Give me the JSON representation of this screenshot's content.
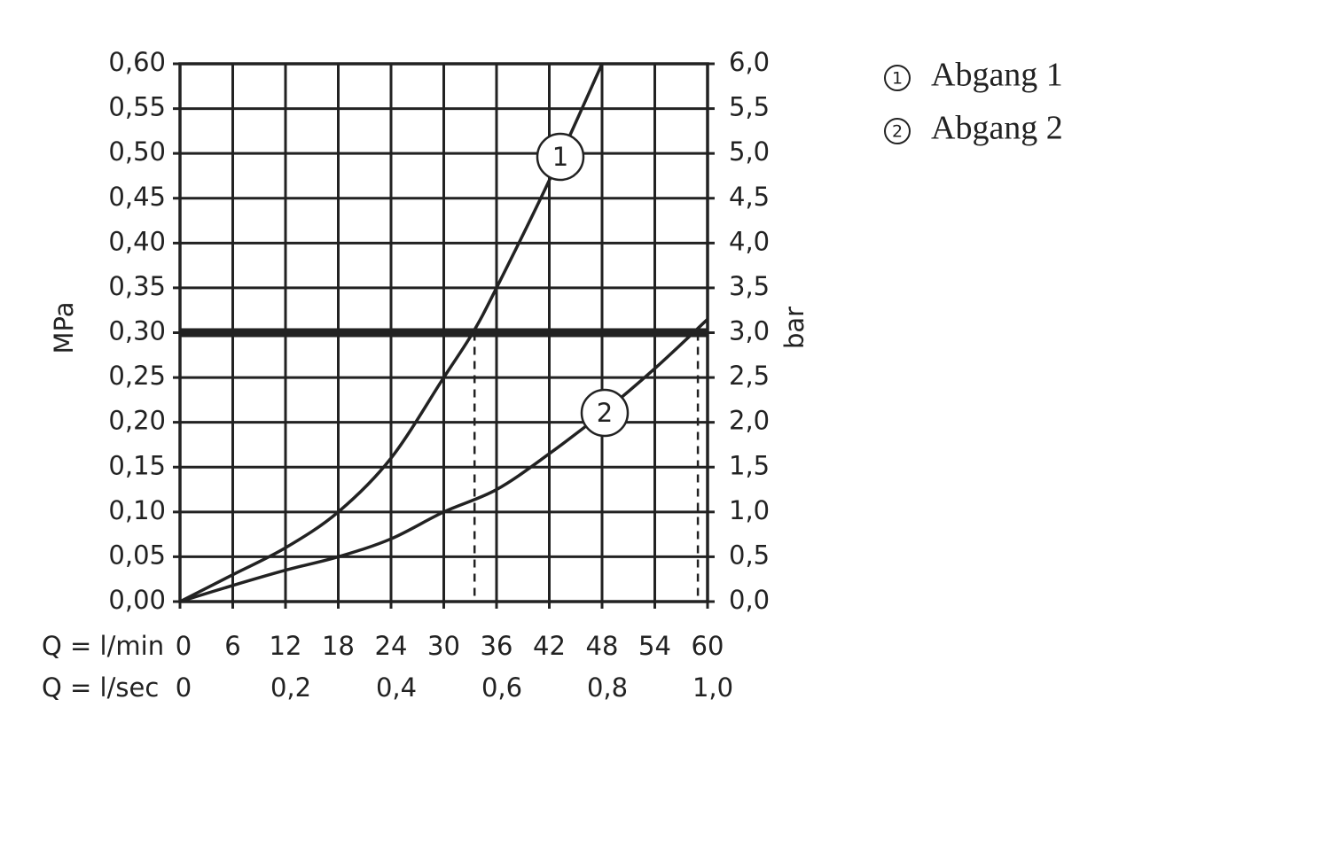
{
  "chart_data": {
    "type": "line",
    "xlabel": "Q = l/min",
    "x2label": "Q = l/sec",
    "ylabel": "MPa",
    "y2label": "bar",
    "xlim": [
      0,
      60
    ],
    "xticks": [
      0,
      6,
      12,
      18,
      24,
      30,
      36,
      42,
      48,
      54,
      60
    ],
    "x2lim": [
      0,
      1
    ],
    "x2ticks": [
      0,
      {
        "value": 0.2,
        "label": "0,2"
      },
      {
        "value": 0.4,
        "label": "0,4"
      },
      {
        "value": 0.6,
        "label": "0,6"
      },
      {
        "value": 0.8,
        "label": "0,8"
      },
      {
        "value": 1.0,
        "label": "1,0"
      }
    ],
    "ylim": [
      0,
      0.6
    ],
    "yticks": [
      {
        "value": 0,
        "label": "0,00"
      },
      {
        "value": 0.05,
        "label": "0,05"
      },
      {
        "value": 0.1,
        "label": "0,10"
      },
      {
        "value": 0.15,
        "label": "0,15"
      },
      {
        "value": 0.2,
        "label": "0,20"
      },
      {
        "value": 0.25,
        "label": "0,25"
      },
      {
        "value": 0.3,
        "label": "0,30"
      },
      {
        "value": 0.35,
        "label": "0,35"
      },
      {
        "value": 0.4,
        "label": "0,40"
      },
      {
        "value": 0.45,
        "label": "0,45"
      },
      {
        "value": 0.5,
        "label": "0,50"
      },
      {
        "value": 0.55,
        "label": "0,55"
      },
      {
        "value": 0.6,
        "label": "0,60"
      }
    ],
    "y2lim": [
      0,
      6
    ],
    "y2ticks": [
      {
        "value": 0,
        "label": "0,0"
      },
      {
        "value": 0.5,
        "label": "0,5"
      },
      {
        "value": 1,
        "label": "1,0"
      },
      {
        "value": 1.5,
        "label": "1,5"
      },
      {
        "value": 2,
        "label": "2,0"
      },
      {
        "value": 2.5,
        "label": "2,5"
      },
      {
        "value": 3,
        "label": "3,0"
      },
      {
        "value": 3.5,
        "label": "3,5"
      },
      {
        "value": 4,
        "label": "4,0"
      },
      {
        "value": 4.5,
        "label": "4,5"
      },
      {
        "value": 5,
        "label": "5,0"
      },
      {
        "value": 5.5,
        "label": "5,5"
      },
      {
        "value": 6,
        "label": "6,0"
      }
    ],
    "grid": true,
    "reference_y": 0.3,
    "drop_lines_x": [
      33.5,
      58.9
    ],
    "series": [
      {
        "name": "Abgang 1",
        "label": "1",
        "color": "#222222",
        "x": [
          0,
          6,
          12,
          18,
          24,
          30,
          33.3,
          36,
          42,
          48
        ],
        "values": [
          0,
          0.03,
          0.06,
          0.1,
          0.16,
          0.25,
          0.3,
          0.35,
          0.47,
          0.6
        ]
      },
      {
        "name": "Abgang 2",
        "label": "2",
        "color": "#222222",
        "x": [
          0,
          6,
          12,
          18,
          24,
          30,
          36,
          42,
          48,
          54,
          60
        ],
        "values": [
          0,
          0.018,
          0.035,
          0.05,
          0.07,
          0.1,
          0.125,
          0.165,
          0.21,
          0.26,
          0.315
        ]
      }
    ]
  }
}
